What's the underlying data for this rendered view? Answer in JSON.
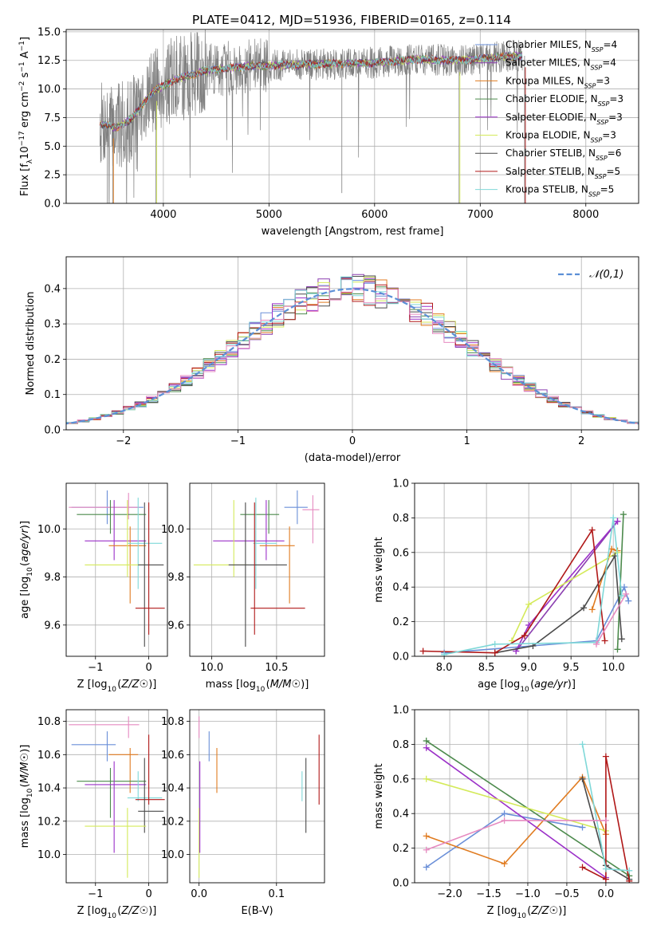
{
  "figure": {
    "title": "PLATE=0412, MJD=51936, FIBERID=0165, z=0.114"
  },
  "colors": {
    "chabrier_miles": "#6a8fd8",
    "salpeter_miles": "#8b3fb0",
    "kroupa_miles": "#e07b20",
    "chabrier_elodie": "#4c8a4c",
    "salpeter_elodie": "#9b30c8",
    "kroupa_elodie": "#d4ea5a",
    "chabrier_stelib": "#4a4a4a",
    "salpeter_stelib": "#b01818",
    "kroupa_stelib": "#7fd8d8",
    "pink": "#e68ac0",
    "gaussian": "#5b8fd6",
    "data": "#808080"
  },
  "chart_data": [
    {
      "id": "spectrum",
      "type": "line",
      "xlabel": "wavelength [Angstrom, rest frame]",
      "ylabel": "Flux [f_λ10^-17 erg cm^-2 s^-1 A^-1]",
      "xlim": [
        3080,
        8500
      ],
      "ylim": [
        0,
        15.2
      ],
      "xticks": [
        4000,
        5000,
        6000,
        7000,
        8000
      ],
      "yticks": [
        0.0,
        2.5,
        5.0,
        7.5,
        10.0,
        12.5,
        15.0
      ],
      "legend_position": "top-right",
      "legend": [
        "Chabrier MILES, N_SSP=4",
        "Salpeter MILES, N_SSP=4",
        "Kroupa MILES, N_SSP=3",
        "Chabrier ELODIE, N_SSP=3",
        "Salpeter ELODIE, N_SSP=3",
        "Kroupa ELODIE, N_SSP=3",
        "Chabrier STELIB, N_SSP=6",
        "Salpeter STELIB, N_SSP=5",
        "Kroupa STELIB, N_SSP=5"
      ],
      "continuum": {
        "x": [
          3400,
          3550,
          3700,
          3900,
          4100,
          4400,
          4800,
          5200,
          5600,
          6000,
          6400,
          6800,
          7200,
          7400
        ],
        "y": [
          7.0,
          6.6,
          7.4,
          9.8,
          10.8,
          11.6,
          12.0,
          12.1,
          12.2,
          12.3,
          12.6,
          12.5,
          12.8,
          12.9
        ]
      }
    },
    {
      "id": "residual_hist",
      "type": "line",
      "xlabel": "(data-model)/error",
      "ylabel": "Normed distribution",
      "xlim": [
        -2.5,
        2.5
      ],
      "ylim": [
        0,
        0.49
      ],
      "xticks": [
        -2,
        -1,
        0,
        1,
        2
      ],
      "yticks": [
        0.0,
        0.1,
        0.2,
        0.3,
        0.4
      ],
      "legend_position": "top-right",
      "legend": [
        "𝒩(0,1)"
      ],
      "bin_width": 0.1,
      "gaussian": {
        "mu": 0,
        "sigma": 1
      }
    },
    {
      "id": "age_vs_Z",
      "type": "scatter",
      "xlabel": "Z [log10(Z/Z☉)]",
      "ylabel": "age [log10(age/yr)]",
      "xlim": [
        -1.55,
        0.35
      ],
      "ylim": [
        9.47,
        10.19
      ],
      "xticks": [
        -1,
        0
      ],
      "yticks": [
        9.6,
        9.8,
        10.0
      ],
      "points": [
        {
          "c": "chabrier_miles",
          "x": -0.78,
          "xlo": -1.45,
          "xhi": -0.1,
          "y": 10.09,
          "ylo": 10.02,
          "yhi": 10.16
        },
        {
          "c": "pink",
          "x": -0.38,
          "xlo": -1.5,
          "xhi": -0.18,
          "y": 10.09,
          "ylo": 10.04,
          "yhi": 10.15
        },
        {
          "c": "chabrier_elodie",
          "x": -0.72,
          "xlo": -1.35,
          "xhi": -0.05,
          "y": 10.06,
          "ylo": 9.98,
          "yhi": 10.12
        },
        {
          "c": "salpeter_elodie",
          "x": -0.65,
          "xlo": -1.2,
          "xhi": -0.05,
          "y": 9.95,
          "ylo": 9.87,
          "yhi": 10.12
        },
        {
          "c": "kroupa_miles",
          "x": -0.35,
          "xlo": -0.75,
          "xhi": -0.05,
          "y": 9.93,
          "ylo": 9.69,
          "yhi": 10.01
        },
        {
          "c": "kroupa_stelib",
          "x": -0.2,
          "xlo": -0.4,
          "xhi": 0.25,
          "y": 9.94,
          "ylo": 9.75,
          "yhi": 10.13
        },
        {
          "c": "kroupa_elodie",
          "x": -0.4,
          "xlo": -1.2,
          "xhi": -0.05,
          "y": 9.85,
          "ylo": 9.8,
          "yhi": 10.12
        },
        {
          "c": "chabrier_stelib",
          "x": -0.08,
          "xlo": -0.2,
          "xhi": 0.28,
          "y": 9.85,
          "ylo": 9.51,
          "yhi": 10.11
        },
        {
          "c": "salpeter_stelib",
          "x": 0.0,
          "xlo": -0.25,
          "xhi": 0.3,
          "y": 9.67,
          "ylo": 9.56,
          "yhi": 10.11
        }
      ]
    },
    {
      "id": "age_vs_mass",
      "type": "scatter",
      "xlabel": "mass [log10(M/M☉)]",
      "ylabel": "",
      "xlim": [
        9.83,
        10.87
      ],
      "ylim": [
        9.47,
        10.19
      ],
      "xticks": [
        10.0,
        10.5
      ],
      "yticks": [
        9.6,
        9.8,
        10.0
      ],
      "points": [
        {
          "c": "chabrier_miles",
          "x": 10.66,
          "xlo": 10.56,
          "xhi": 10.74,
          "y": 10.09,
          "ylo": 10.02,
          "yhi": 10.16
        },
        {
          "c": "pink",
          "x": 10.78,
          "xlo": 10.7,
          "xhi": 10.83,
          "y": 10.08,
          "ylo": 9.94,
          "yhi": 10.14
        },
        {
          "c": "chabrier_elodie",
          "x": 10.44,
          "xlo": 10.22,
          "xhi": 10.52,
          "y": 10.06,
          "ylo": 9.98,
          "yhi": 10.12
        },
        {
          "c": "salpeter_elodie",
          "x": 10.42,
          "xlo": 10.01,
          "xhi": 10.56,
          "y": 9.95,
          "ylo": 9.87,
          "yhi": 10.12
        },
        {
          "c": "kroupa_miles",
          "x": 10.6,
          "xlo": 10.37,
          "xhi": 10.64,
          "y": 9.93,
          "ylo": 9.69,
          "yhi": 10.01
        },
        {
          "c": "kroupa_stelib",
          "x": 10.34,
          "xlo": 10.32,
          "xhi": 10.5,
          "y": 9.94,
          "ylo": 9.75,
          "yhi": 10.13
        },
        {
          "c": "kroupa_elodie",
          "x": 10.17,
          "xlo": 9.86,
          "xhi": 10.28,
          "y": 9.85,
          "ylo": 9.8,
          "yhi": 10.12
        },
        {
          "c": "chabrier_stelib",
          "x": 10.26,
          "xlo": 10.13,
          "xhi": 10.58,
          "y": 9.85,
          "ylo": 9.51,
          "yhi": 10.11
        },
        {
          "c": "salpeter_stelib",
          "x": 10.33,
          "xlo": 10.3,
          "xhi": 10.72,
          "y": 9.67,
          "ylo": 9.56,
          "yhi": 10.11
        }
      ]
    },
    {
      "id": "mass_weight_vs_age",
      "type": "line",
      "xlabel": "age [log10(age/yr)]",
      "ylabel": "mass weight",
      "xlim": [
        7.65,
        10.3
      ],
      "ylim": [
        0,
        1.0
      ],
      "xticks": [
        8.0,
        8.5,
        9.0,
        9.5,
        10.0
      ],
      "yticks": [
        0.0,
        0.2,
        0.4,
        0.6,
        0.8,
        1.0
      ],
      "series": [
        {
          "c": "chabrier_miles",
          "x": [
            8.0,
            9.8,
            10.13,
            10.18
          ],
          "y": [
            0.02,
            0.09,
            0.4,
            0.32
          ]
        },
        {
          "c": "salpeter_miles",
          "x": [
            8.85,
            10.05
          ],
          "y": [
            0.03,
            0.78
          ]
        },
        {
          "c": "kroupa_miles",
          "x": [
            9.75,
            9.98,
            10.05
          ],
          "y": [
            0.27,
            0.62,
            0.61
          ]
        },
        {
          "c": "chabrier_elodie",
          "x": [
            10.05,
            10.12
          ],
          "y": [
            0.04,
            0.82
          ]
        },
        {
          "c": "salpeter_elodie",
          "x": [
            8.85,
            9.0,
            10.05
          ],
          "y": [
            0.03,
            0.18,
            0.78
          ]
        },
        {
          "c": "kroupa_elodie",
          "x": [
            8.8,
            9.0,
            10.05
          ],
          "y": [
            0.09,
            0.3,
            0.6
          ]
        },
        {
          "c": "chabrier_stelib",
          "x": [
            8.6,
            9.05,
            9.65,
            10.02,
            10.1
          ],
          "y": [
            0.02,
            0.06,
            0.28,
            0.58,
            0.1
          ]
        },
        {
          "c": "salpeter_stelib",
          "x": [
            7.75,
            8.6,
            8.95,
            9.75,
            9.9
          ],
          "y": [
            0.03,
            0.02,
            0.12,
            0.73,
            0.09
          ]
        },
        {
          "c": "kroupa_stelib",
          "x": [
            8.0,
            8.6,
            9.8,
            10.0,
            10.1
          ],
          "y": [
            0.01,
            0.07,
            0.08,
            0.8,
            0.35
          ]
        },
        {
          "c": "pink",
          "x": [
            9.8,
            10.15
          ],
          "y": [
            0.07,
            0.36
          ]
        }
      ]
    },
    {
      "id": "mass_vs_Z",
      "type": "scatter",
      "xlabel": "Z [log10(Z/Z☉)]",
      "ylabel": "mass [log10(M/M☉)]",
      "xlim": [
        -1.55,
        0.35
      ],
      "ylim": [
        9.83,
        10.87
      ],
      "xticks": [
        -1,
        0
      ],
      "yticks": [
        10.0,
        10.2,
        10.4,
        10.6,
        10.8
      ],
      "points": [
        {
          "c": "pink",
          "x": -0.38,
          "xlo": -1.5,
          "xhi": -0.18,
          "y": 10.78,
          "ylo": 10.7,
          "yhi": 10.83
        },
        {
          "c": "chabrier_miles",
          "x": -0.78,
          "xlo": -1.45,
          "xhi": -0.62,
          "y": 10.66,
          "ylo": 10.56,
          "yhi": 10.74
        },
        {
          "c": "kroupa_miles",
          "x": -0.35,
          "xlo": -0.75,
          "xhi": -0.2,
          "y": 10.6,
          "ylo": 10.37,
          "yhi": 10.64
        },
        {
          "c": "chabrier_elodie",
          "x": -0.72,
          "xlo": -1.35,
          "xhi": -0.05,
          "y": 10.44,
          "ylo": 10.22,
          "yhi": 10.52
        },
        {
          "c": "salpeter_elodie",
          "x": -0.65,
          "xlo": -1.2,
          "xhi": -0.05,
          "y": 10.42,
          "ylo": 10.01,
          "yhi": 10.56
        },
        {
          "c": "kroupa_stelib",
          "x": -0.2,
          "xlo": -0.4,
          "xhi": 0.25,
          "y": 10.34,
          "ylo": 10.32,
          "yhi": 10.5
        },
        {
          "c": "salpeter_stelib",
          "x": 0.0,
          "xlo": -0.25,
          "xhi": 0.3,
          "y": 10.33,
          "ylo": 10.3,
          "yhi": 10.72
        },
        {
          "c": "chabrier_stelib",
          "x": -0.08,
          "xlo": -0.2,
          "xhi": 0.28,
          "y": 10.26,
          "ylo": 10.13,
          "yhi": 10.58
        },
        {
          "c": "kroupa_elodie",
          "x": -0.4,
          "xlo": -1.2,
          "xhi": -0.05,
          "y": 10.17,
          "ylo": 9.86,
          "yhi": 10.28
        }
      ]
    },
    {
      "id": "mass_vs_ebv",
      "type": "scatter",
      "xlabel": "E(B-V)",
      "ylabel": "",
      "xlim": [
        -0.012,
        0.162
      ],
      "ylim": [
        9.83,
        10.87
      ],
      "xticks": [
        0.0,
        0.1
      ],
      "yticks": [
        10.0,
        10.2,
        10.4,
        10.6,
        10.8
      ],
      "points": [
        {
          "c": "pink",
          "x": 0.0,
          "ylo": 10.7,
          "yhi": 10.83
        },
        {
          "c": "kroupa_elodie",
          "x": 0.0,
          "ylo": 9.86,
          "yhi": 10.28
        },
        {
          "c": "salpeter_elodie",
          "x": 0.001,
          "ylo": 10.01,
          "yhi": 10.56
        },
        {
          "c": "chabrier_miles",
          "x": 0.013,
          "ylo": 10.56,
          "yhi": 10.74
        },
        {
          "c": "kroupa_miles",
          "x": 0.023,
          "ylo": 10.37,
          "yhi": 10.64
        },
        {
          "c": "kroupa_stelib",
          "x": 0.133,
          "ylo": 10.32,
          "yhi": 10.5
        },
        {
          "c": "chabrier_stelib",
          "x": 0.138,
          "ylo": 10.13,
          "yhi": 10.58
        },
        {
          "c": "salpeter_stelib",
          "x": 0.155,
          "ylo": 10.3,
          "yhi": 10.72
        }
      ]
    },
    {
      "id": "mass_weight_vs_Z",
      "type": "line",
      "xlabel": "Z [log10(Z/Z☉)]",
      "ylabel": "mass weight",
      "xlim": [
        -2.45,
        0.42
      ],
      "ylim": [
        0,
        1.0
      ],
      "xticks": [
        -2.0,
        -1.5,
        -1.0,
        -0.5,
        0.0
      ],
      "yticks": [
        0.0,
        0.2,
        0.4,
        0.6,
        0.8,
        1.0
      ],
      "series": [
        {
          "c": "chabrier_miles",
          "x": [
            -2.3,
            -1.3,
            -0.3
          ],
          "y": [
            0.09,
            0.4,
            0.32
          ]
        },
        {
          "c": "kroupa_miles",
          "x": [
            -2.3,
            -1.3,
            -0.3,
            0.0
          ],
          "y": [
            0.27,
            0.11,
            0.61,
            0.28
          ]
        },
        {
          "c": "chabrier_elodie",
          "x": [
            -2.3,
            0.3
          ],
          "y": [
            0.82,
            0.04
          ]
        },
        {
          "c": "salpeter_elodie",
          "x": [
            -2.3,
            0.0
          ],
          "y": [
            0.78,
            0.03
          ]
        },
        {
          "c": "kroupa_elodie",
          "x": [
            -2.3,
            0.0
          ],
          "y": [
            0.6,
            0.3
          ]
        },
        {
          "c": "chabrier_stelib",
          "x": [
            -0.3,
            0.0,
            0.3
          ],
          "y": [
            0.6,
            0.1,
            0.02
          ]
        },
        {
          "c": "salpeter_stelib",
          "x": [
            -0.3,
            0.0,
            0.0,
            0.3
          ],
          "y": [
            0.09,
            0.02,
            0.73,
            0.01
          ]
        },
        {
          "c": "kroupa_stelib",
          "x": [
            -0.3,
            0.0,
            0.3
          ],
          "y": [
            0.8,
            0.08,
            0.07
          ]
        },
        {
          "c": "pink",
          "x": [
            -2.3,
            -1.3,
            0.0
          ],
          "y": [
            0.19,
            0.36,
            0.36
          ]
        }
      ]
    }
  ]
}
